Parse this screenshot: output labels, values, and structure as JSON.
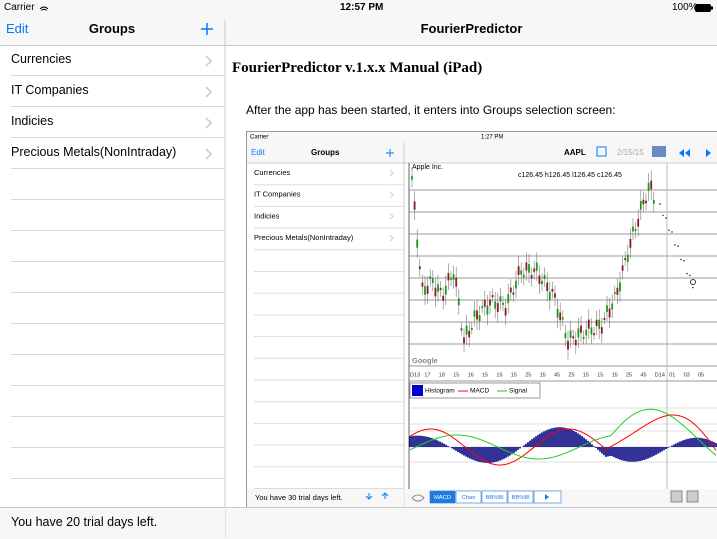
{
  "status_bar": {
    "carrier": "Carrier",
    "time": "12:57 PM",
    "battery": "100%"
  },
  "groups_panel": {
    "edit": "Edit",
    "title": "Groups",
    "items": [
      "Currencies",
      "IT Companies",
      "Indicies",
      "Precious Metals(NonIntraday)"
    ],
    "footer": "You have 20 trial days left."
  },
  "detail": {
    "title": "FourierPredictor",
    "heading": "FourierPredictor v.1.x.x Manual (iPad)",
    "paragraph": "After the app has been started, it enters into Groups selection screen:"
  },
  "screenshot": {
    "carrier": "Carrier",
    "time": "1:27 PM",
    "edit": "Edit",
    "title": "Groups",
    "items": [
      "Currencies",
      "IT Companies",
      "Indicies",
      "Precious Metals(NonIntraday)"
    ],
    "footer": "You have 30 trial days left.",
    "symbol": "AAPL",
    "date": "2/15/15",
    "company": "Apple Inc.",
    "ohlc": "c126.45 h126.45 l126.45 c126.45",
    "watermark": "Google",
    "x_labels": [
      "D13",
      "17",
      "18",
      "15",
      "16",
      "15",
      "15",
      "15",
      "25",
      "15",
      "45",
      "25",
      "15",
      "15",
      "15",
      "25",
      "45",
      "D14",
      "01",
      "03",
      "05"
    ],
    "legend": [
      "Histogram",
      "MACD",
      "Signal"
    ],
    "tabs": [
      "MACD",
      "Chan",
      "BB%Bl",
      "BB%Bl"
    ]
  }
}
